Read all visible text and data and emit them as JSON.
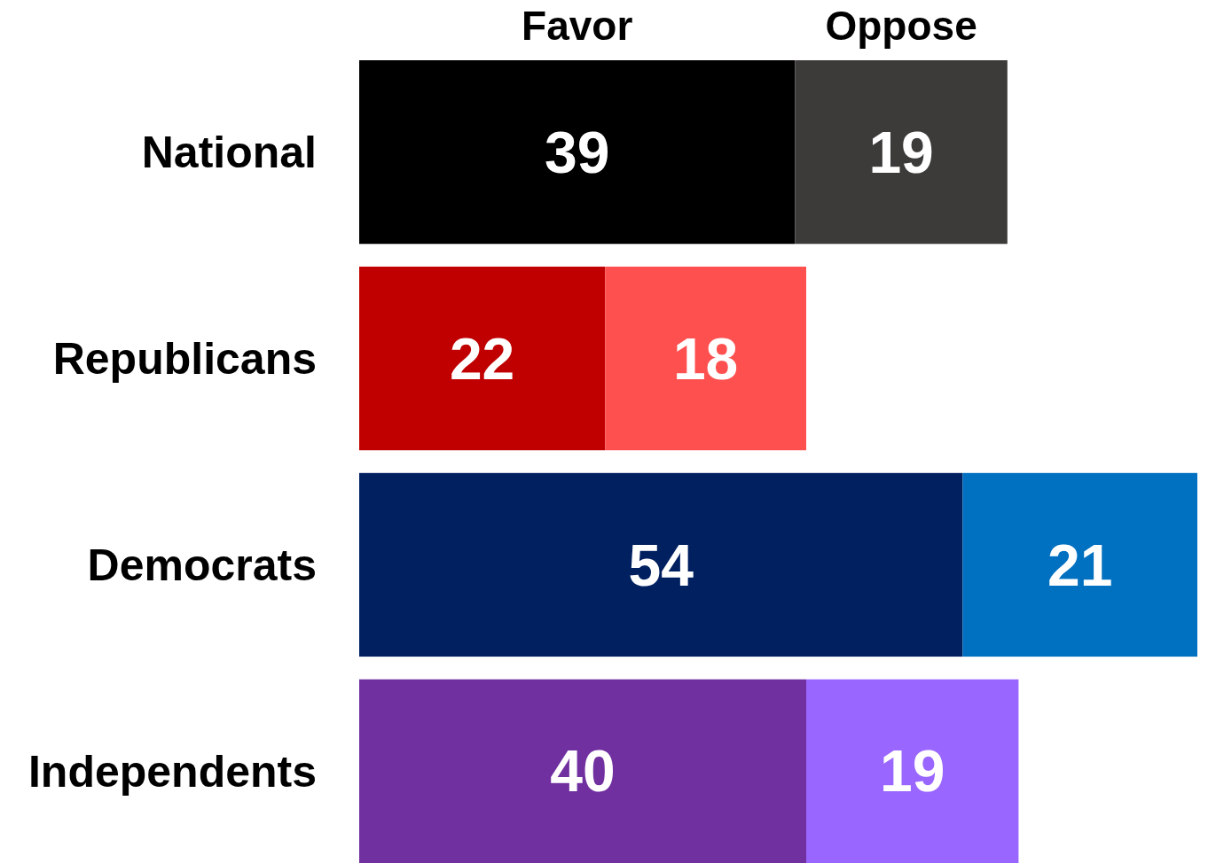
{
  "chart_data": {
    "type": "bar",
    "orientation": "horizontal",
    "stacked": true,
    "data_labels": true,
    "legend": "top",
    "categories": [
      "National",
      "Republicans",
      "Democrats",
      "Independents"
    ],
    "series": [
      {
        "name": "Favor",
        "values": [
          39,
          22,
          54,
          40
        ],
        "colors": [
          "#000000",
          "#c00000",
          "#002060",
          "#7030a0"
        ]
      },
      {
        "name": "Oppose",
        "values": [
          19,
          18,
          21,
          19
        ],
        "colors": [
          "#3c3b3a",
          "#ff5050",
          "#0070c0",
          "#9966ff"
        ]
      }
    ]
  }
}
